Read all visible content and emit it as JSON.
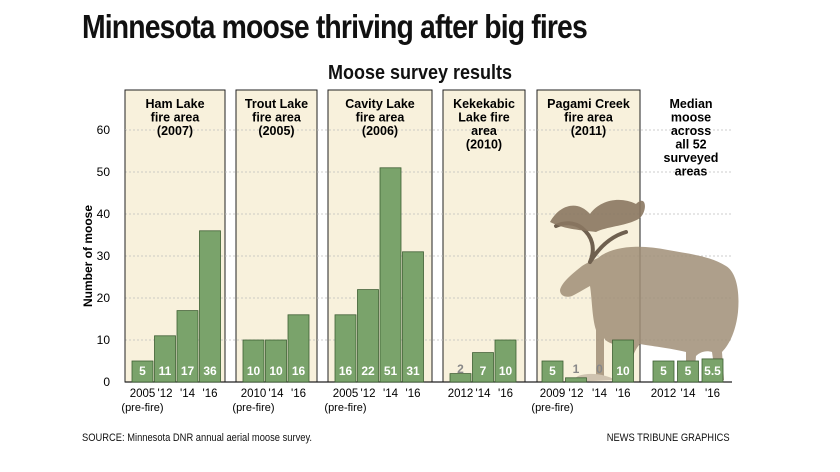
{
  "headline": "Minnesota moose thriving after big fires",
  "subtitle": "Moose survey results",
  "source": "SOURCE: Minnesota DNR annual aerial moose survey.",
  "credit": "NEWS TRIBUNE GRAPHICS",
  "colors": {
    "bar": "#7aa36b",
    "panel": "#f8f1dc",
    "grid": "#bdbdbd",
    "label_dark": "#ffffff",
    "label_light": "#888888"
  },
  "chart_data": {
    "type": "bar",
    "ylabel": "Number of moose",
    "ylim": [
      0,
      60
    ],
    "yticks": [
      0,
      10,
      20,
      30,
      40,
      50,
      60
    ],
    "grid": true,
    "groups": [
      {
        "title": [
          "Ham Lake",
          "fire area",
          "(2007)"
        ],
        "categories": [
          "2005",
          "'12",
          "'14",
          "'16"
        ],
        "values": [
          5,
          11,
          17,
          36
        ],
        "note": "(pre-fire)"
      },
      {
        "title": [
          "Trout Lake",
          "fire area",
          "(2005)"
        ],
        "categories": [
          "2010",
          "'14",
          "'16"
        ],
        "values": [
          10,
          10,
          16
        ],
        "note": "(pre-fire)"
      },
      {
        "title": [
          "Cavity Lake",
          "fire area",
          "(2006)"
        ],
        "categories": [
          "2005",
          "'12",
          "'14",
          "'16"
        ],
        "values": [
          16,
          22,
          51,
          31
        ],
        "note": "(pre-fire)"
      },
      {
        "title": [
          "Kekekabic",
          "Lake fire",
          "area",
          "(2010)"
        ],
        "categories": [
          "2012",
          "'14",
          "'16"
        ],
        "values": [
          2,
          7,
          10
        ],
        "note": ""
      },
      {
        "title": [
          "Pagami Creek",
          "fire area",
          "(2011)"
        ],
        "categories": [
          "2009",
          "'12",
          "'14",
          "'16"
        ],
        "values": [
          5,
          1,
          0,
          10
        ],
        "note": "(pre-fire)"
      },
      {
        "title": [
          "Median",
          "moose",
          "across",
          "all 52",
          "surveyed",
          "areas"
        ],
        "categories": [
          "2012",
          "'14",
          "'16"
        ],
        "values": [
          5,
          5,
          5.5
        ],
        "note": ""
      }
    ]
  }
}
